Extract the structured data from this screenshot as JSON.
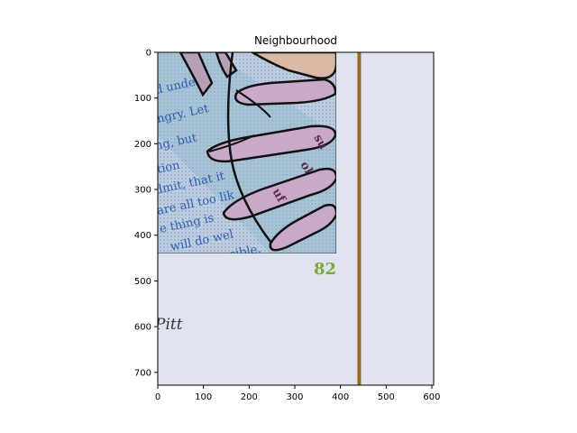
{
  "chart_data": {
    "type": "image",
    "title": "Neighbourhood",
    "xlabel": "",
    "ylabel": "",
    "xlim": [
      0,
      604
    ],
    "ylim": [
      728,
      0
    ],
    "xticks": [
      0,
      100,
      200,
      300,
      400,
      500,
      600
    ],
    "yticks": [
      0,
      100,
      200,
      300,
      400,
      500,
      600,
      700
    ],
    "grid": false,
    "image_content": {
      "page_color": "#dfe3ee",
      "inset_region": {
        "x": [
          0,
          390
        ],
        "y": [
          0,
          440
        ]
      },
      "inset_text_fragments": [
        "d under",
        "ngry. Let",
        "ng, but",
        "tion",
        "dmit, that it",
        "are all too lik",
        "e thing is",
        "will do wel",
        "ensible."
      ],
      "finger_labels": [
        "su",
        "ol",
        "uf"
      ],
      "page_number": "82",
      "signature": "Pitt",
      "stripe_x": 441,
      "stripe_color": "#9a6a1e",
      "accent_green": "#7aa832"
    }
  }
}
